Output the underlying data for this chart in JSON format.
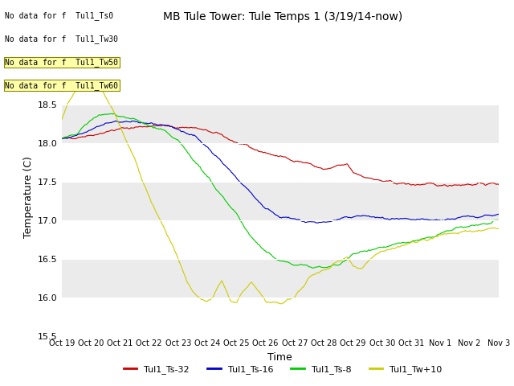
{
  "title": "MB Tule Tower: Tule Temps 1 (3/19/14-now)",
  "xlabel": "Time",
  "ylabel": "Temperature (C)",
  "ylim": [
    15.5,
    19.1
  ],
  "bg_color": "#ebebeb",
  "fig_color": "#ffffff",
  "xtick_labels": [
    "Oct 19",
    "Oct 20",
    "Oct 21",
    "Oct 22",
    "Oct 23",
    "Oct 24",
    "Oct 25",
    "Oct 26",
    "Oct 27",
    "Oct 28",
    "Oct 29",
    "Oct 30",
    "Oct 31",
    "Nov 1",
    "Nov 2",
    "Nov 3"
  ],
  "ytick_labels": [
    "15.5",
    "16.0",
    "16.5",
    "17.0",
    "17.5",
    "18.0",
    "18.5"
  ],
  "ytick_values": [
    15.5,
    16.0,
    16.5,
    17.0,
    17.5,
    18.0,
    18.5
  ],
  "legend_entries": [
    "Tul1_Ts-32",
    "Tul1_Ts-16",
    "Tul1_Ts-8",
    "Tul1_Tw+10"
  ],
  "legend_colors": [
    "#cc0000",
    "#0000cc",
    "#00cc00",
    "#cccc00"
  ],
  "no_data_texts": [
    "No data for f  Tul1_Ts0",
    "No data for f  Tul1_Tw30",
    "No data for f  Tul1_Tw50",
    "No data for f  Tul1_Tw60"
  ],
  "line_colors": [
    "#cc0000",
    "#0000cc",
    "#00cc00",
    "#cccc00"
  ],
  "band_ranges": [
    [
      15.5,
      16.0
    ],
    [
      16.5,
      17.0
    ],
    [
      17.5,
      18.0
    ],
    [
      18.5,
      19.1
    ]
  ],
  "band_color": "#ffffff"
}
